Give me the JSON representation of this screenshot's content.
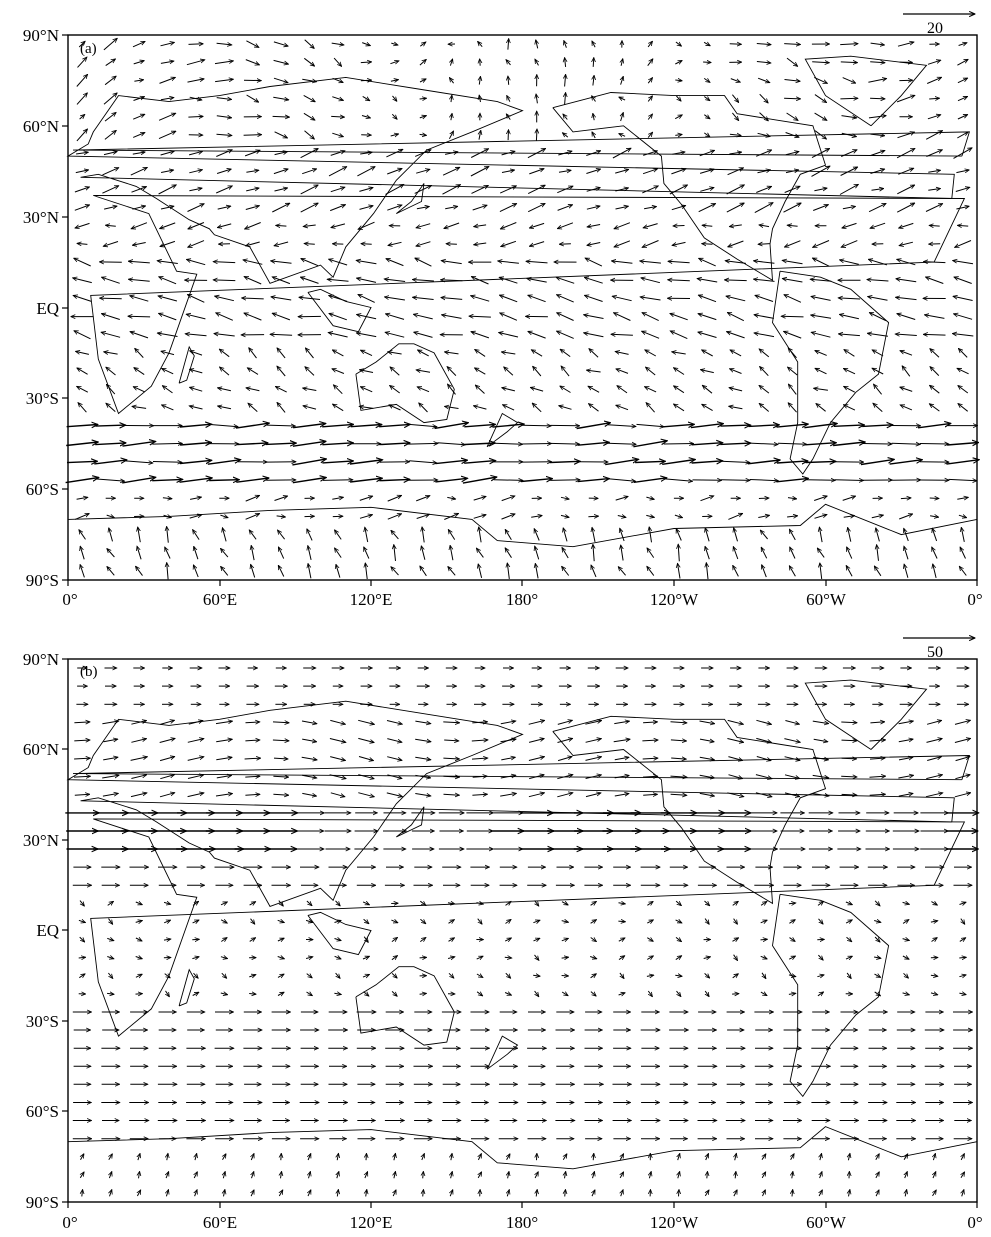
{
  "figure": {
    "panels": [
      {
        "label": "(a)",
        "reference_vector": "20",
        "lat_labels": [
          "90°N",
          "60°N",
          "30°N",
          "EQ",
          "30°S",
          "60°S",
          "90°S"
        ],
        "lon_labels": [
          "0°",
          "60°E",
          "120°E",
          "180°",
          "120°W",
          "60°W",
          "0°"
        ]
      },
      {
        "label": "(b)",
        "reference_vector": "50",
        "lat_labels": [
          "90°N",
          "60°N",
          "30°N",
          "EQ",
          "30°S",
          "60°S",
          "90°S"
        ],
        "lon_labels": [
          "0°",
          "60°E",
          "120°E",
          "180°",
          "120°W",
          "60°W",
          "0°"
        ]
      }
    ]
  },
  "colors": {
    "line": "#000000",
    "background": "#ffffff"
  }
}
